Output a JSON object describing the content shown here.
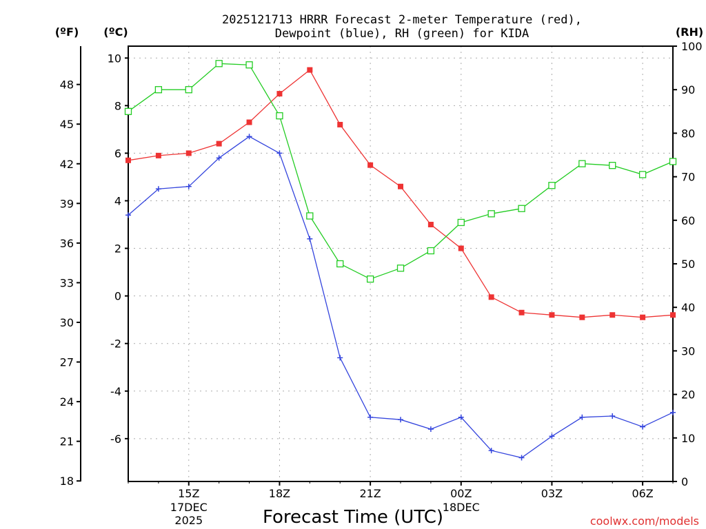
{
  "chart_data": {
    "type": "line",
    "title_line1": "2025121713 HRRR Forecast 2-meter Temperature (red),",
    "title_line2": "Dewpoint (blue), RH (green) for KIDA",
    "xlabel": "Forecast Time (UTC)",
    "credit": "coolwx.com/models",
    "units": {
      "fahrenheit": "(ºF)",
      "celsius": "(ºC)",
      "rh": "(RH)"
    },
    "x_hours": [
      13,
      14,
      15,
      16,
      17,
      18,
      19,
      20,
      21,
      22,
      23,
      24,
      25,
      26,
      27,
      28,
      29,
      30,
      31
    ],
    "xlim": [
      13,
      31
    ],
    "ylim_c": [
      -7.8,
      10.5
    ],
    "ylim_rh": [
      0,
      100
    ],
    "x_ticks": [
      {
        "hour": 15,
        "label": "15Z",
        "date1": "17DEC",
        "date2": "2025"
      },
      {
        "hour": 18,
        "label": "18Z",
        "date1": "",
        "date2": ""
      },
      {
        "hour": 21,
        "label": "21Z",
        "date1": "",
        "date2": ""
      },
      {
        "hour": 24,
        "label": "00Z",
        "date1": "18DEC",
        "date2": ""
      },
      {
        "hour": 27,
        "label": "03Z",
        "date1": "",
        "date2": ""
      },
      {
        "hour": 30,
        "label": "06Z",
        "date1": "",
        "date2": ""
      }
    ],
    "y_ticks_c": [
      "-6",
      "-4",
      "-2",
      "0",
      "2",
      "4",
      "6",
      "8",
      "10"
    ],
    "y_ticks_f": [
      "18",
      "21",
      "24",
      "27",
      "30",
      "33",
      "36",
      "39",
      "42",
      "45",
      "48"
    ],
    "y_ticks_rh": [
      "0",
      "10",
      "20",
      "30",
      "40",
      "50",
      "60",
      "70",
      "80",
      "90",
      "100"
    ],
    "series": [
      {
        "name": "Temperature",
        "axis": "c",
        "color": "#ee3333",
        "marker": "filled-square",
        "values": [
          5.7,
          5.9,
          6.0,
          6.4,
          7.3,
          8.5,
          9.5,
          7.2,
          5.5,
          4.6,
          3.0,
          2.0,
          -0.05,
          -0.7,
          -0.8,
          -0.9,
          -0.8,
          -0.9,
          -0.8
        ]
      },
      {
        "name": "Dewpoint",
        "axis": "c",
        "color": "#3344dd",
        "marker": "plus",
        "values": [
          3.4,
          4.5,
          4.6,
          5.8,
          6.7,
          6.0,
          2.4,
          -2.6,
          -5.1,
          -5.2,
          -5.6,
          -5.1,
          -6.5,
          -6.8,
          -5.9,
          -5.1,
          -5.05,
          -5.5,
          -4.9
        ]
      },
      {
        "name": "RH",
        "axis": "rh",
        "color": "#22cc22",
        "marker": "open-square",
        "values": [
          85,
          90,
          90,
          96,
          95.7,
          84,
          61,
          50,
          46.5,
          49,
          53,
          59.5,
          61.5,
          62.7,
          68,
          73,
          72.6,
          70.5,
          73.5
        ]
      }
    ]
  }
}
